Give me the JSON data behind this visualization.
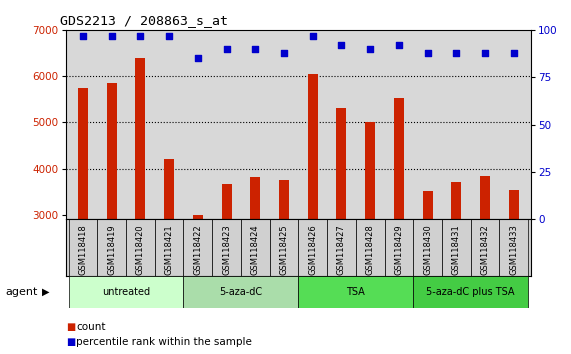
{
  "title": "GDS2213 / 208863_s_at",
  "samples": [
    "GSM118418",
    "GSM118419",
    "GSM118420",
    "GSM118421",
    "GSM118422",
    "GSM118423",
    "GSM118424",
    "GSM118425",
    "GSM118426",
    "GSM118427",
    "GSM118428",
    "GSM118429",
    "GSM118430",
    "GSM118431",
    "GSM118432",
    "GSM118433"
  ],
  "counts": [
    5750,
    5850,
    6400,
    4200,
    3000,
    3660,
    3810,
    3760,
    6050,
    5320,
    5020,
    5540,
    3510,
    3720,
    3840,
    3530
  ],
  "percentiles": [
    97,
    97,
    97,
    97,
    85,
    90,
    90,
    88,
    97,
    92,
    90,
    92,
    88,
    88,
    88,
    88
  ],
  "bar_color": "#cc2200",
  "dot_color": "#0000cc",
  "ylim_left": [
    2900,
    7000
  ],
  "ylim_right": [
    0,
    100
  ],
  "yticks_left": [
    3000,
    4000,
    5000,
    6000,
    7000
  ],
  "yticks_right": [
    0,
    25,
    50,
    75,
    100
  ],
  "groups": [
    {
      "label": "untreated",
      "start": 0,
      "end": 4,
      "color": "#ccffcc"
    },
    {
      "label": "5-aza-dC",
      "start": 4,
      "end": 8,
      "color": "#aaddaa"
    },
    {
      "label": "TSA",
      "start": 8,
      "end": 12,
      "color": "#55dd55"
    },
    {
      "label": "5-aza-dC plus TSA",
      "start": 12,
      "end": 16,
      "color": "#44cc44"
    }
  ],
  "agent_label": "agent",
  "legend_count_label": "count",
  "legend_pct_label": "percentile rank within the sample",
  "bg_plot": "#d8d8d8",
  "tick_label_color_left": "#cc2200",
  "tick_label_color_right": "#0000cc",
  "title_color": "#000000",
  "xlabel_bg": "#d0d0d0"
}
